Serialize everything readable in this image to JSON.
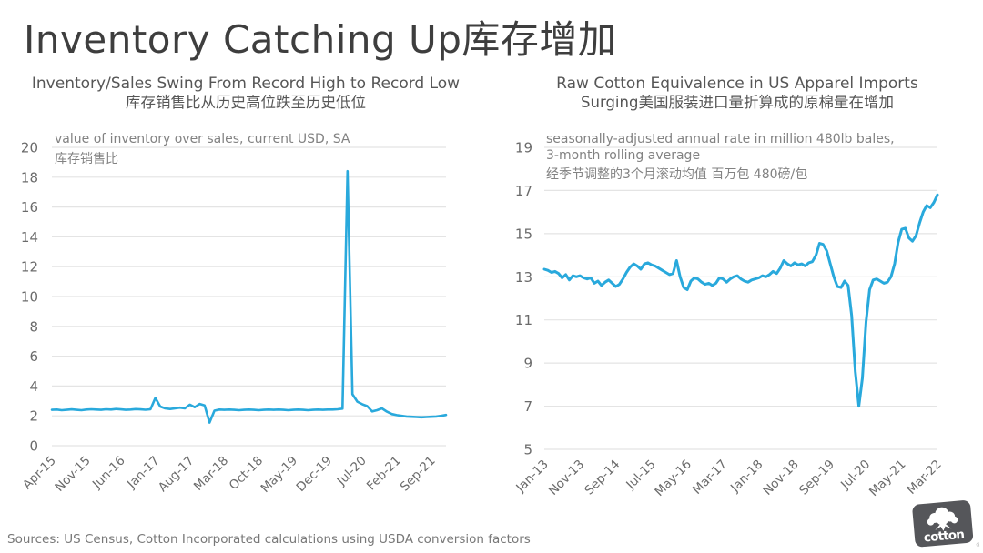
{
  "slide": {
    "title": "Inventory Catching Up库存增加",
    "sources": "Sources: US Census, Cotton Incorporated calculations using USDA conversion factors",
    "logo_text": "cotton",
    "logo_registered_mark": "®",
    "colors": {
      "line": "#29A9DC",
      "grid": "#E4E4E4",
      "title_text": "#3E3E3E",
      "chart_title_text": "#565656",
      "axis_text": "#6B6B6B",
      "subtitle_text": "#828282",
      "logo_background": "#55565A"
    }
  },
  "chart_data": [
    {
      "type": "line",
      "title_en": "Inventory/Sales Swing From Record High to Record Low",
      "title_zh": "库存销售比从历史高位跌至历史低位",
      "subtitle_lines": [
        "value of inventory over sales, current USD, SA",
        "库存销售比"
      ],
      "xlabel": "",
      "ylabel": "",
      "ylim": [
        0,
        20
      ],
      "y_ticks": [
        20,
        18,
        16,
        14,
        12,
        10,
        8,
        6,
        4,
        2,
        0
      ],
      "grid": "horizontal",
      "legend": "none",
      "x_tick_labels": [
        "Apr-15",
        "Nov-15",
        "Jun-16",
        "Jan-17",
        "Aug-17",
        "Mar-18",
        "Oct-18",
        "May-19",
        "Dec-19",
        "Jul-20",
        "Feb-21",
        "Sep-21"
      ],
      "x_tick_month_index": [
        0,
        7,
        14,
        21,
        28,
        35,
        42,
        49,
        56,
        63,
        70,
        77
      ],
      "x_start_month": "Apr-15",
      "x_end_month": "Dec-21",
      "values": [
        2.4,
        2.42,
        2.38,
        2.4,
        2.43,
        2.4,
        2.38,
        2.42,
        2.44,
        2.42,
        2.4,
        2.44,
        2.42,
        2.46,
        2.43,
        2.4,
        2.42,
        2.45,
        2.43,
        2.41,
        2.44,
        3.2,
        2.62,
        2.5,
        2.46,
        2.5,
        2.55,
        2.5,
        2.75,
        2.58,
        2.8,
        2.7,
        1.55,
        2.35,
        2.42,
        2.4,
        2.42,
        2.4,
        2.38,
        2.4,
        2.42,
        2.4,
        2.38,
        2.4,
        2.42,
        2.4,
        2.42,
        2.4,
        2.38,
        2.4,
        2.42,
        2.4,
        2.38,
        2.4,
        2.42,
        2.4,
        2.42,
        2.42,
        2.44,
        2.48,
        18.4,
        3.45,
        2.95,
        2.78,
        2.65,
        2.3,
        2.38,
        2.5,
        2.28,
        2.12,
        2.05,
        2.0,
        1.96,
        1.94,
        1.92,
        1.9,
        1.92,
        1.94,
        1.96,
        2.0,
        2.06
      ]
    },
    {
      "type": "line",
      "title_en": "Raw Cotton Equivalence in US Apparel Imports",
      "title_zh": "Surging美国服装进口量折算成的原棉量在增加",
      "subtitle_lines": [
        "seasonally-adjusted annual rate in million 480lb bales,",
        "3-month rolling average",
        "经季节调整的3个月滚动均值 百万包 480磅/包"
      ],
      "xlabel": "",
      "ylabel": "",
      "ylim": [
        5,
        19
      ],
      "y_ticks": [
        19,
        17,
        15,
        13,
        11,
        9,
        7,
        5
      ],
      "grid": "horizontal",
      "legend": "none",
      "x_tick_labels": [
        "Jan-13",
        "Nov-13",
        "Sep-14",
        "Jul-15",
        "May-16",
        "Mar-17",
        "Jan-18",
        "Nov-18",
        "Sep-19",
        "Jul-20",
        "May-21",
        "Mar-22"
      ],
      "x_tick_month_index": [
        0,
        10,
        20,
        30,
        40,
        50,
        60,
        70,
        80,
        90,
        100,
        110
      ],
      "x_start_month": "Jan-13",
      "x_end_month": "Mar-22",
      "values": [
        13.35,
        13.3,
        13.2,
        13.25,
        13.15,
        12.95,
        13.1,
        12.85,
        13.05,
        13.0,
        13.05,
        12.95,
        12.9,
        12.95,
        12.7,
        12.8,
        12.6,
        12.75,
        12.85,
        12.7,
        12.55,
        12.65,
        12.9,
        13.2,
        13.45,
        13.6,
        13.5,
        13.35,
        13.6,
        13.65,
        13.55,
        13.5,
        13.4,
        13.3,
        13.2,
        13.1,
        13.15,
        13.75,
        13.0,
        12.5,
        12.4,
        12.8,
        12.95,
        12.9,
        12.75,
        12.65,
        12.7,
        12.6,
        12.7,
        12.95,
        12.9,
        12.75,
        12.9,
        13.0,
        13.05,
        12.9,
        12.8,
        12.75,
        12.85,
        12.9,
        12.95,
        13.05,
        13.0,
        13.1,
        13.25,
        13.15,
        13.4,
        13.75,
        13.6,
        13.5,
        13.65,
        13.55,
        13.6,
        13.5,
        13.65,
        13.7,
        14.0,
        14.55,
        14.5,
        14.2,
        13.6,
        13.0,
        12.55,
        12.5,
        12.8,
        12.6,
        11.2,
        8.6,
        7.0,
        8.3,
        10.9,
        12.4,
        12.85,
        12.9,
        12.8,
        12.7,
        12.75,
        13.0,
        13.6,
        14.6,
        15.2,
        15.25,
        14.8,
        14.65,
        14.9,
        15.5,
        16.0,
        16.3,
        16.2,
        16.45,
        16.8
      ]
    }
  ]
}
